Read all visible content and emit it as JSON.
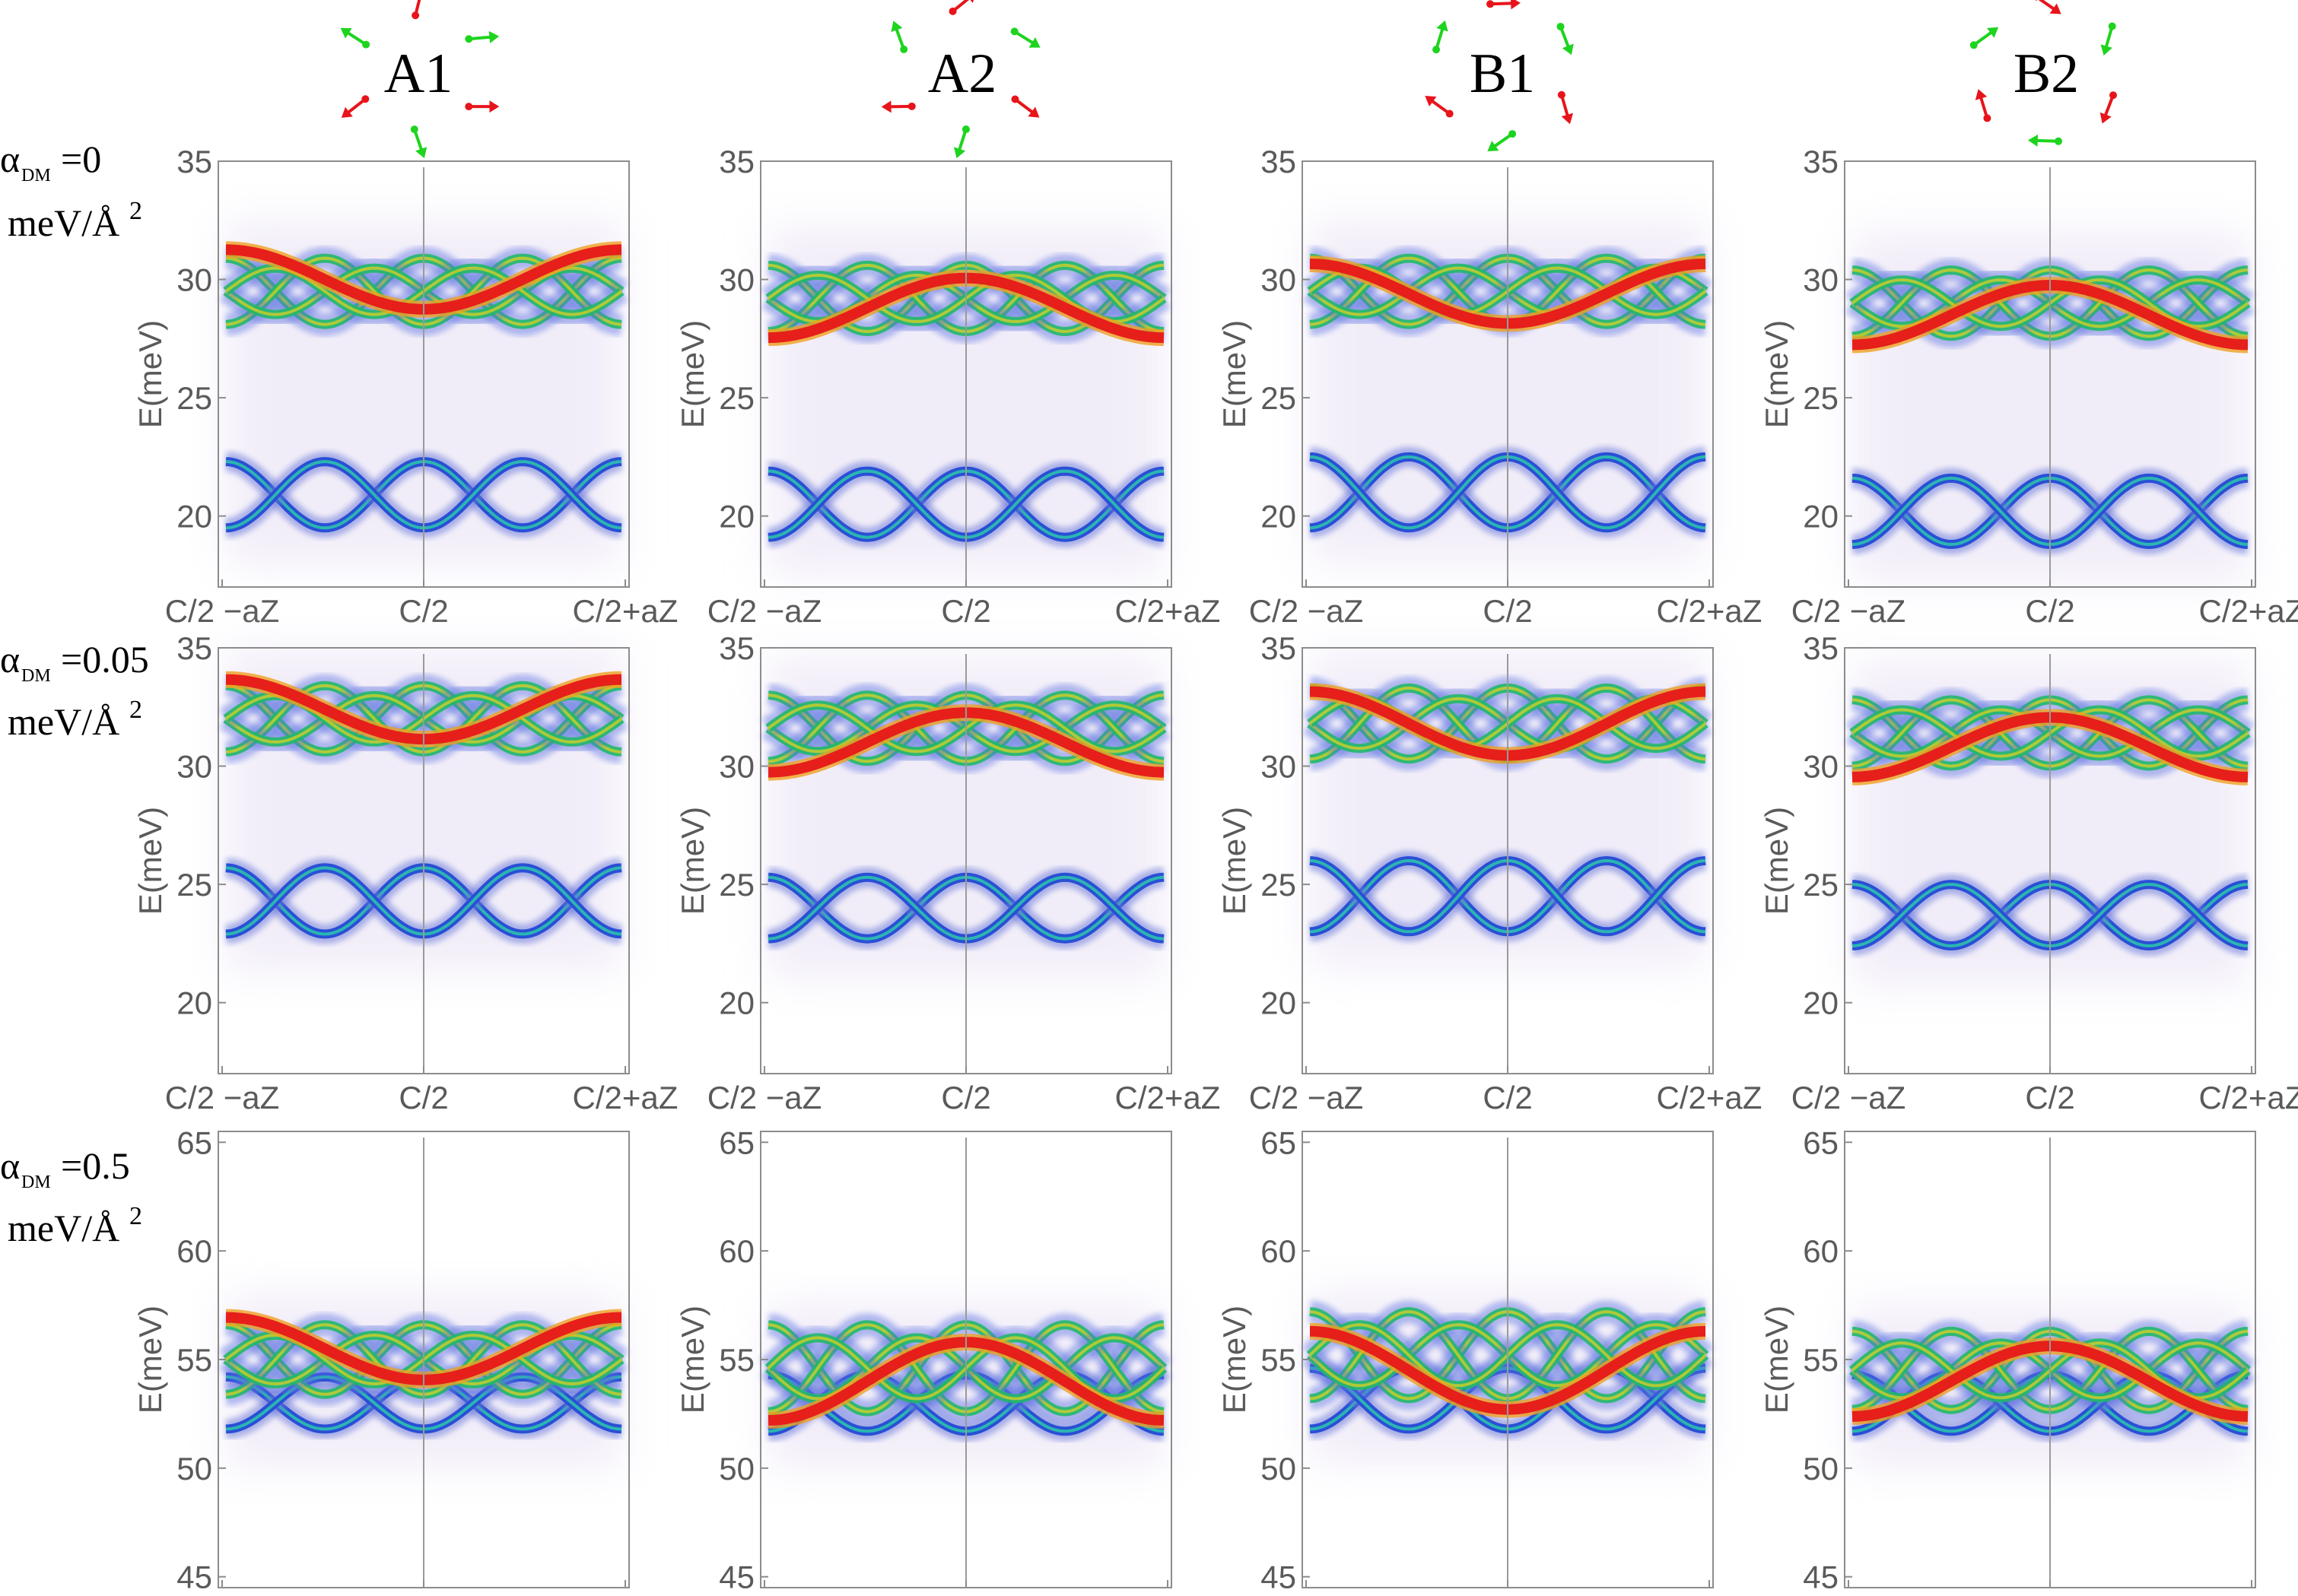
{
  "column_titles": [
    "A1",
    "A2",
    "B1",
    "B2"
  ],
  "row_labels": [
    {
      "alpha_symbol": "α",
      "sub": "DM",
      "value": "=0",
      "unit": "meV/Å",
      "exp": "2"
    },
    {
      "alpha_symbol": "α",
      "sub": "DM",
      "value": "=0.05",
      "unit": "meV/Å",
      "exp": "2"
    },
    {
      "alpha_symbol": "α",
      "sub": "DM",
      "value": "=0.5",
      "unit": "meV/Å",
      "exp": "2"
    }
  ],
  "colors": {
    "red_arrow": "#e8141b",
    "green_arrow": "#1ed41e",
    "frame": "#8c8c8c",
    "center_line": "#9a9a9a",
    "tick_text": "#5a5a5a"
  },
  "chart_data": [
    {
      "type": "heatmap",
      "xlabel": "",
      "ylabel": "E(meV)",
      "xticks": [
        "C/2 −aZ",
        "C/2",
        "C/2+aZ"
      ],
      "yticks": [
        20,
        25,
        30,
        35
      ],
      "ylim": [
        17,
        35
      ],
      "panels": [
        {
          "column": "A1",
          "upper_band": {
            "center": 29.5,
            "amp": 1.4,
            "strong": 30.0
          },
          "lower_band": {
            "center": 20.9,
            "amp": 1.4,
            "phase": 0
          }
        },
        {
          "column": "A2",
          "upper_band": {
            "center": 29.2,
            "amp": 1.4,
            "strong": 28.8
          },
          "lower_band": {
            "center": 20.5,
            "amp": 1.4,
            "phase": 0
          }
        },
        {
          "column": "B1",
          "upper_band": {
            "center": 29.5,
            "amp": 1.4,
            "strong": 29.4
          },
          "lower_band": {
            "center": 21.0,
            "amp": 1.5,
            "phase": 1
          }
        },
        {
          "column": "B2",
          "upper_band": {
            "center": 29.0,
            "amp": 1.4,
            "strong": 28.5
          },
          "lower_band": {
            "center": 20.2,
            "amp": 1.4,
            "phase": 0
          }
        }
      ]
    },
    {
      "type": "heatmap",
      "xlabel": "",
      "ylabel": "E(meV)",
      "xticks": [
        "C/2 −aZ",
        "C/2",
        "C/2+aZ"
      ],
      "yticks": [
        20,
        25,
        30,
        35
      ],
      "ylim": [
        17,
        35
      ],
      "panels": [
        {
          "column": "A1",
          "upper_band": {
            "center": 32.0,
            "amp": 1.4,
            "strong": 32.4
          },
          "lower_band": {
            "center": 24.3,
            "amp": 1.4,
            "phase": 0
          }
        },
        {
          "column": "A2",
          "upper_band": {
            "center": 31.6,
            "amp": 1.4,
            "strong": 31.0
          },
          "lower_band": {
            "center": 24.0,
            "amp": 1.3,
            "phase": 0
          }
        },
        {
          "column": "B1",
          "upper_band": {
            "center": 31.8,
            "amp": 1.5,
            "strong": 31.8
          },
          "lower_band": {
            "center": 24.5,
            "amp": 1.5,
            "phase": 1
          }
        },
        {
          "column": "B2",
          "upper_band": {
            "center": 31.4,
            "amp": 1.4,
            "strong": 30.8
          },
          "lower_band": {
            "center": 23.7,
            "amp": 1.3,
            "phase": 0
          }
        }
      ]
    },
    {
      "type": "heatmap",
      "xlabel": "",
      "ylabel": "E(meV)",
      "xticks": [
        "C/2 −aZ",
        "C/2",
        "C/2+aZ"
      ],
      "yticks": [
        45,
        50,
        55,
        60,
        65
      ],
      "ylim": [
        44.5,
        65.5
      ],
      "panels": [
        {
          "column": "A1",
          "upper_band": {
            "center": 55.0,
            "amp": 1.6,
            "strong": 55.5
          },
          "lower_band": {
            "center": 53.0,
            "amp": 1.2,
            "phase": 0
          }
        },
        {
          "column": "A2",
          "upper_band": {
            "center": 54.6,
            "amp": 2.0,
            "strong": 54.0
          },
          "lower_band": {
            "center": 53.0,
            "amp": 1.3,
            "phase": 0
          }
        },
        {
          "column": "B1",
          "upper_band": {
            "center": 55.2,
            "amp": 2.0,
            "strong": 54.5
          },
          "lower_band": {
            "center": 53.2,
            "amp": 1.4,
            "phase": 1
          }
        },
        {
          "column": "B2",
          "upper_band": {
            "center": 54.5,
            "amp": 1.8,
            "strong": 54.0
          },
          "lower_band": {
            "center": 53.0,
            "amp": 1.3,
            "phase": 0
          }
        }
      ]
    }
  ],
  "icons": [
    "spin-arrows-icon"
  ]
}
